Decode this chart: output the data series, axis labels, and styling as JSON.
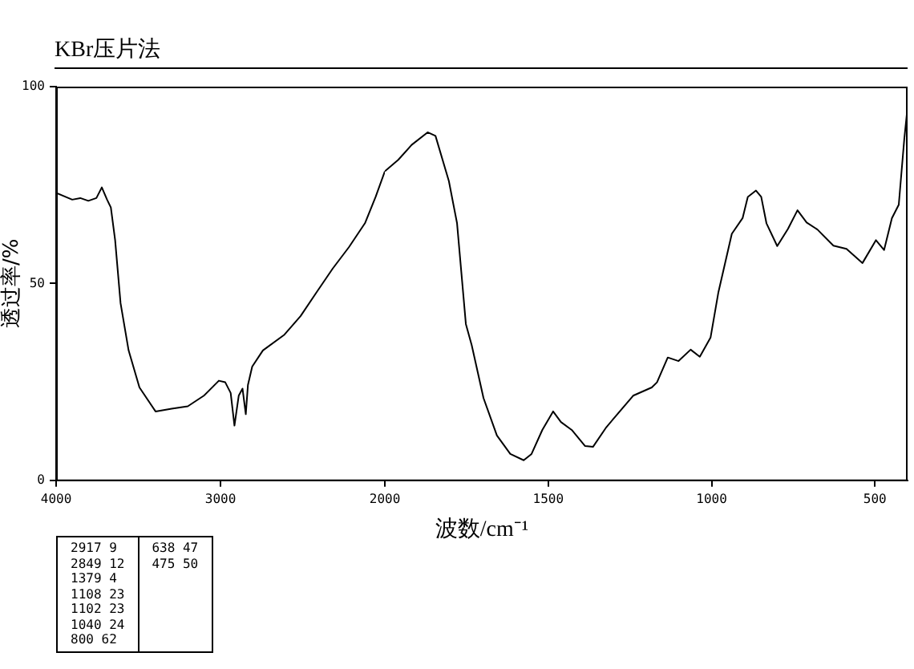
{
  "chart_data": [
    {
      "type": "line",
      "title": "KBr压片法",
      "xlabel": "波数/cm⁻¹",
      "ylabel": "透过率/%",
      "x": [
        4000,
        3902,
        3853,
        3804,
        3755,
        3722,
        3690,
        3667,
        3641,
        3608,
        3559,
        3493,
        3395,
        3297,
        3199,
        3101,
        3010,
        2971,
        2938,
        2915,
        2889,
        2866,
        2846,
        2833,
        2807,
        2742,
        2611,
        2513,
        2415,
        2317,
        2219,
        2121,
        2056,
        2000
      ],
      "series": [
        {
          "color": "#000000",
          "values": [
            73,
            71.3,
            71.7,
            71,
            71.7,
            74.4,
            71.3,
            69.3,
            61,
            45,
            33,
            23.6,
            17.5,
            18.2,
            18.8,
            21.5,
            25.3,
            24.9,
            22.2,
            13.9,
            21.5,
            23.3,
            16.8,
            24.2,
            28.9,
            33,
            37,
            41.7,
            47.8,
            53.8,
            59.2,
            65.3,
            72,
            78.5
          ]
        }
      ],
      "xlim": [
        4000,
        2000
      ],
      "xticks": [
        4000,
        3000,
        2000
      ],
      "ylim": [
        0,
        100
      ],
      "yticks": [
        0,
        50,
        100
      ],
      "grid": false,
      "legend": false,
      "marker": "none",
      "line_style": "solid",
      "annotations": [
        "2917 9",
        "2849 12",
        "1379 4",
        "1108 23",
        "1102 23",
        "1040 24",
        "800 62",
        "638 47",
        "475 50"
      ]
    },
    {
      "type": "line",
      "x": [
        2000,
        1959,
        1918,
        1869,
        1845,
        1804,
        1779,
        1752,
        1734,
        1698,
        1657,
        1616,
        1575,
        1551,
        1518,
        1485,
        1461,
        1428,
        1387,
        1363,
        1322,
        1240,
        1183,
        1167,
        1134,
        1101,
        1064,
        1036,
        1003,
        979,
        938,
        905,
        889,
        864,
        848,
        832,
        799,
        766,
        737,
        709,
        676,
        627,
        587,
        538,
        497,
        472,
        448,
        427,
        410,
        400
      ],
      "series": [
        {
          "color": "#000000",
          "values": [
            78.5,
            81.4,
            85.2,
            88.4,
            87.5,
            76,
            65.3,
            39.7,
            34.3,
            20.9,
            11.4,
            6.7,
            5.1,
            6.7,
            12.8,
            17.5,
            14.8,
            12.8,
            8.7,
            8.5,
            13.5,
            21.5,
            23.6,
            24.9,
            31.2,
            30.3,
            33.2,
            31.4,
            36.3,
            47.8,
            62.6,
            66.6,
            72,
            73.6,
            72,
            65.3,
            59.5,
            63.9,
            68.6,
            65.5,
            63.7,
            59.6,
            58.8,
            55.2,
            61,
            58.5,
            66.6,
            70,
            86.8,
            94.9
          ]
        }
      ],
      "xlim": [
        2000,
        400
      ],
      "xticks": [
        1500,
        1000,
        500
      ],
      "ylim": [
        0,
        100
      ],
      "yticks": [
        0,
        50,
        100
      ],
      "tick_labels": "x",
      "grid": false,
      "legend": false,
      "marker": "none",
      "line_style": "solid"
    }
  ]
}
